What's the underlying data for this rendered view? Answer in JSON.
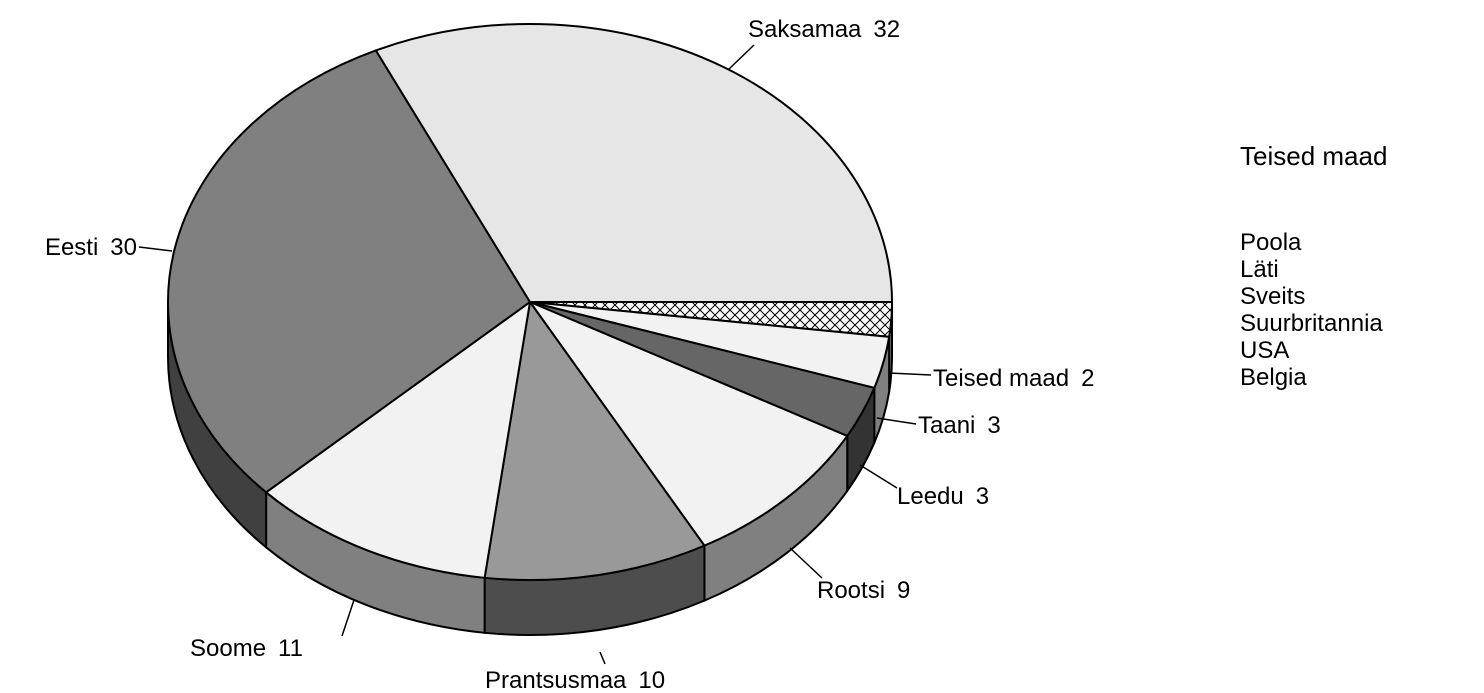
{
  "chart_data": {
    "type": "pie3d",
    "categories": [
      "Teised maad",
      "Taani",
      "Leedu",
      "Rootsi",
      "Prantsusmaa",
      "Soome",
      "Eesti",
      "Saksamaa"
    ],
    "values": [
      2,
      3,
      3,
      9,
      10,
      11,
      30,
      32
    ],
    "colors": [
      "#ffffff",
      "#f2f2f2",
      "#666666",
      "#f2f2f2",
      "#999999",
      "#f2f2f2",
      "#808080",
      "#e6e6e6"
    ],
    "side_colors": [
      "#808080",
      "#808080",
      "#333333",
      "#808080",
      "#4d4d4d",
      "#808080",
      "#404040",
      "#b3b3b3"
    ],
    "patterns": [
      "crosshatch",
      null,
      null,
      null,
      null,
      null,
      null,
      null
    ],
    "note": {
      "title": "Teised maad",
      "items": [
        "Poola",
        "Läti",
        "Sveits",
        "Suurbritannia",
        "USA",
        "Belgia"
      ]
    }
  }
}
